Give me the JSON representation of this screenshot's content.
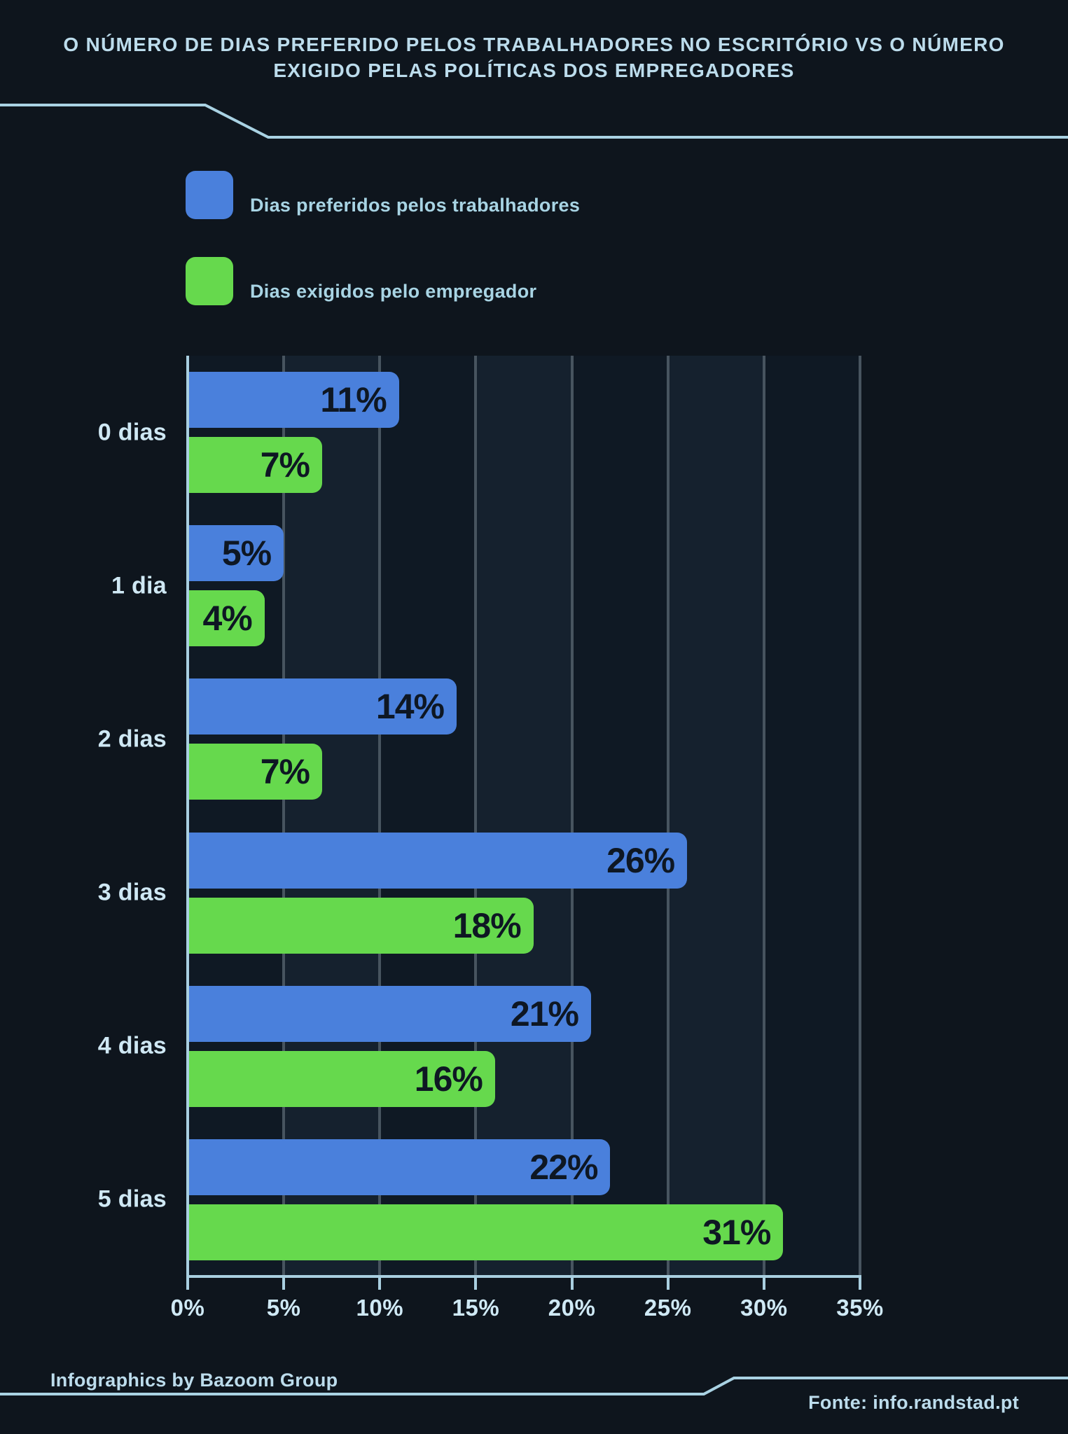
{
  "page": {
    "title": "O NÚMERO DE DIAS PREFERIDO PELOS TRABALHADORES NO ESCRITÓRIO VS O NÚMERO EXIGIDO PELAS POLÍTICAS DOS EMPREGADORES",
    "footer_left": "Infographics by Bazoom Group",
    "footer_right": "Fonte: info.randstad.pt"
  },
  "legend": [
    {
      "label": "Dias preferidos pelos trabalhadores",
      "color": "#4a80dc"
    },
    {
      "label": "Dias exigidos pelo empregador",
      "color": "#66d94d"
    }
  ],
  "chart_data": {
    "type": "bar",
    "orientation": "horizontal",
    "title": "O número de dias preferido pelos trabalhadores no escritório vs o número exigido pelas políticas dos empregadores",
    "categories": [
      "0 dias",
      "1 dia",
      "2 dias",
      "3 dias",
      "4 dias",
      "5 dias"
    ],
    "series": [
      {
        "name": "Dias preferidos pelos trabalhadores",
        "color": "#4a80dc",
        "values": [
          11,
          5,
          14,
          26,
          21,
          22
        ]
      },
      {
        "name": "Dias exigidos pelo empregador",
        "color": "#66d94d",
        "values": [
          7,
          4,
          7,
          18,
          16,
          31
        ]
      }
    ],
    "value_suffix": "%",
    "xlim": [
      0,
      35
    ],
    "x_tick_step": 5,
    "x_tick_labels": [
      "0%",
      "5%",
      "10%",
      "15%",
      "20%",
      "25%",
      "30%",
      "35%"
    ],
    "grid": true,
    "legend_position": "top-left"
  },
  "colors": {
    "background": "#0e151d",
    "plot_band_dark": "#0f1924",
    "plot_band_light": "#15212e",
    "gridline": "#47545f",
    "axis": "#a9cfe0",
    "deco_line": "#a9d2e3",
    "title_text": "#bcdcec",
    "category_text": "#cfe8f4",
    "tick_text": "#cfe9f5",
    "value_text": "#0e1723"
  }
}
